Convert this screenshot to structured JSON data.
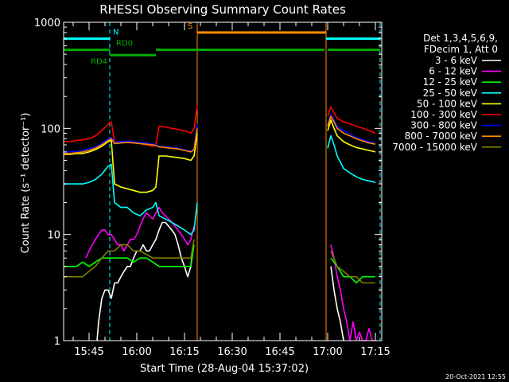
{
  "chart_data": {
    "type": "line",
    "title": "RHESSI Observing Summary Count Rates",
    "xlabel": "Start Time (28-Aug-04 15:37:02)",
    "ylabel": "Count Rate (s⁻¹ detector⁻¹)",
    "x_unit": "minutes after 15:37:02",
    "xlim": [
      0,
      100
    ],
    "ylim": [
      1,
      1000
    ],
    "yscale": "log",
    "x_ticks": [
      {
        "x": 8,
        "label": "15:45"
      },
      {
        "x": 23,
        "label": "16:00"
      },
      {
        "x": 38,
        "label": "16:15"
      },
      {
        "x": 53,
        "label": "16:30"
      },
      {
        "x": 68,
        "label": "16:45"
      },
      {
        "x": 83,
        "label": "17:00"
      },
      {
        "x": 98,
        "label": "17:15"
      }
    ],
    "y_ticks": [
      {
        "y": 1,
        "label": "1"
      },
      {
        "y": 10,
        "label": "10"
      },
      {
        "y": 100,
        "label": "100"
      },
      {
        "y": 1000,
        "label": "1000"
      }
    ],
    "legend_header": [
      "Det 1,3,4,5,6,9,",
      "FDecim 1, Att 0"
    ],
    "legend_position": "right",
    "timestamp": "20-Oct-2021 12:55",
    "flags": [
      {
        "label": "N",
        "color": "#00ffff",
        "level": 700,
        "segments": [
          [
            0,
            14.5
          ],
          [
            82.5,
            99.5
          ]
        ]
      },
      {
        "label": "S",
        "color": "#ff8c00",
        "level": 800,
        "segments": [
          [
            42,
            82.5
          ]
        ]
      },
      {
        "label": "RD0",
        "color": "#00aa00",
        "level": 550,
        "segments": [
          [
            0,
            14.5
          ],
          [
            29,
            82
          ],
          [
            83,
            84
          ],
          [
            84,
            99.5
          ]
        ]
      },
      {
        "label": "RD4",
        "color": "#00aa00",
        "level": 490,
        "segments": [
          [
            14.5,
            29
          ]
        ]
      }
    ],
    "vlines": [
      {
        "x": 0,
        "color": "#00ffff",
        "dash": true
      },
      {
        "x": 14.5,
        "color": "#00ffff",
        "dash": true
      },
      {
        "x": 82.5,
        "color": "#00ffff",
        "dash": true
      },
      {
        "x": 99.5,
        "color": "#00ffff",
        "dash": true
      },
      {
        "x": 42,
        "color": "#ff8c00",
        "dash": false
      },
      {
        "x": 82.5,
        "color": "#ff8c00",
        "dash": false
      }
    ],
    "series": [
      {
        "name": "3 - 6 keV",
        "color": "#ffffff",
        "x": [
          10.5,
          11,
          12,
          13,
          14,
          15,
          16,
          17,
          18,
          19,
          20,
          21,
          22,
          23,
          24,
          25,
          26,
          27,
          28,
          29,
          30,
          31,
          32,
          33,
          34,
          35,
          36,
          37,
          38,
          39,
          40,
          40.5,
          null,
          84,
          85,
          86,
          87,
          88
        ],
        "y": [
          1,
          1.5,
          2.5,
          3,
          3,
          2.5,
          3.5,
          3.5,
          4,
          4.5,
          5,
          5,
          6,
          7,
          7,
          8,
          7,
          7,
          8,
          9,
          11,
          13,
          13,
          12,
          11,
          10,
          8,
          6,
          5,
          4,
          5,
          7,
          null,
          5,
          3,
          2,
          1.5,
          1
        ]
      },
      {
        "name": "6 - 12 keV",
        "color": "#ff00ff",
        "x": [
          7,
          8,
          9,
          10,
          11,
          12,
          13,
          14,
          15,
          16,
          17,
          18,
          19,
          20,
          21,
          22,
          23,
          24,
          25,
          26,
          27,
          28,
          29,
          30,
          31,
          32,
          33,
          34,
          35,
          36,
          37,
          38,
          39,
          40,
          41,
          null,
          84,
          85,
          86,
          87,
          88,
          89,
          90,
          91,
          92,
          93,
          94,
          95,
          96,
          97,
          98
        ],
        "y": [
          6,
          7,
          8,
          9,
          10,
          11,
          11,
          10,
          10,
          9,
          8,
          8,
          7,
          8,
          9,
          9,
          10,
          12,
          14,
          16,
          15,
          14,
          16,
          18,
          16,
          15,
          14,
          13,
          12,
          11,
          10,
          9,
          8,
          9,
          12,
          null,
          8,
          6,
          4,
          3,
          2,
          1.5,
          1,
          1.5,
          1,
          1.2,
          1,
          1,
          1.3,
          1,
          1
        ]
      },
      {
        "name": "12 - 25 keV",
        "color": "#00ff00",
        "x": [
          0,
          2,
          4,
          6,
          8,
          10,
          12,
          14,
          16,
          18,
          20,
          22,
          24,
          26,
          28,
          30,
          32,
          34,
          36,
          38,
          40,
          41,
          null,
          84,
          86,
          88,
          90,
          92,
          94,
          96,
          98
        ],
        "y": [
          5,
          5,
          5,
          5.5,
          5,
          5.5,
          6,
          6,
          6,
          6,
          6,
          5.5,
          6,
          6,
          5.5,
          5,
          5,
          5,
          5,
          5,
          5,
          8,
          null,
          6,
          5,
          4,
          4,
          3.5,
          4,
          4,
          4
        ]
      },
      {
        "name": "25 - 50 keV",
        "color": "#00ffff",
        "x": [
          0,
          2,
          4,
          6,
          8,
          10,
          12,
          14,
          15,
          16,
          18,
          20,
          22,
          24,
          26,
          28,
          29,
          30,
          32,
          34,
          36,
          38,
          40,
          41,
          42,
          null,
          83,
          84,
          85,
          86,
          88,
          90,
          92,
          94,
          96,
          98
        ],
        "y": [
          30,
          30,
          30,
          30,
          31,
          33,
          37,
          44,
          46,
          20,
          18,
          18,
          16,
          15,
          17,
          18,
          20,
          15,
          14,
          13,
          12,
          11,
          10,
          11,
          20,
          null,
          65,
          85,
          70,
          55,
          42,
          38,
          35,
          33,
          32,
          31
        ]
      },
      {
        "name": "50 - 100 keV",
        "color": "#ffff00",
        "x": [
          0,
          2,
          4,
          6,
          8,
          10,
          12,
          14,
          15,
          16,
          18,
          20,
          22,
          24,
          26,
          28,
          29,
          30,
          32,
          34,
          36,
          38,
          40,
          41,
          42,
          null,
          83,
          84,
          85,
          86,
          88,
          90,
          92,
          94,
          96,
          98
        ],
        "y": [
          57,
          57,
          58,
          58,
          60,
          63,
          68,
          75,
          77,
          30,
          28,
          27,
          26,
          25,
          25,
          26,
          28,
          55,
          55,
          54,
          53,
          52,
          50,
          55,
          90,
          null,
          95,
          120,
          100,
          85,
          75,
          70,
          66,
          64,
          62,
          60
        ]
      },
      {
        "name": "100 - 300 keV",
        "color": "#ff0000",
        "x": [
          0,
          2,
          4,
          6,
          8,
          10,
          12,
          14,
          15,
          16,
          18,
          20,
          22,
          24,
          26,
          28,
          29,
          30,
          32,
          34,
          36,
          38,
          40,
          41,
          42,
          null,
          83,
          84,
          85,
          86,
          88,
          90,
          92,
          94,
          96,
          98
        ],
        "y": [
          75,
          75,
          77,
          78,
          80,
          85,
          95,
          110,
          115,
          75,
          75,
          74,
          73,
          72,
          70,
          68,
          70,
          105,
          103,
          100,
          98,
          95,
          90,
          100,
          165,
          null,
          130,
          160,
          140,
          125,
          115,
          110,
          105,
          100,
          95,
          90
        ]
      },
      {
        "name": "300 - 800 keV",
        "color": "#0000ff",
        "x": [
          0,
          2,
          4,
          6,
          8,
          10,
          12,
          14,
          15,
          16,
          18,
          20,
          22,
          24,
          26,
          28,
          29,
          30,
          32,
          34,
          36,
          38,
          40,
          41,
          42,
          null,
          83,
          84,
          85,
          86,
          88,
          90,
          92,
          94,
          96,
          98
        ],
        "y": [
          60,
          60,
          61,
          62,
          64,
          67,
          72,
          80,
          82,
          74,
          75,
          76,
          75,
          74,
          73,
          71,
          70,
          68,
          67,
          66,
          65,
          63,
          61,
          65,
          110,
          null,
          110,
          135,
          120,
          105,
          95,
          88,
          82,
          78,
          75,
          73
        ]
      },
      {
        "name": "800 - 7000 keV",
        "color": "#ff8c00",
        "x": [
          0,
          2,
          4,
          6,
          8,
          10,
          12,
          14,
          15,
          16,
          18,
          20,
          22,
          24,
          26,
          28,
          29,
          30,
          32,
          34,
          36,
          38,
          40,
          41,
          42,
          null,
          83,
          84,
          85,
          86,
          88,
          90,
          92,
          94,
          96,
          98
        ],
        "y": [
          58,
          58,
          59,
          60,
          62,
          65,
          70,
          77,
          80,
          72,
          73,
          74,
          73,
          72,
          71,
          70,
          69,
          67,
          66,
          65,
          64,
          62,
          60,
          63,
          100,
          null,
          105,
          130,
          115,
          100,
          90,
          85,
          80,
          76,
          73,
          71
        ]
      },
      {
        "name": "7000 - 15000 keV",
        "color": "#808000",
        "x": [
          0,
          2,
          4,
          6,
          8,
          10,
          12,
          14,
          16,
          18,
          20,
          22,
          24,
          26,
          28,
          30,
          32,
          34,
          36,
          38,
          40,
          41,
          null,
          84,
          86,
          88,
          90,
          92,
          94,
          96,
          98
        ],
        "y": [
          4,
          4,
          4,
          4,
          4.5,
          5,
          6,
          7,
          7,
          8,
          8,
          7,
          7,
          6.5,
          6,
          6,
          6,
          6,
          6,
          6,
          6,
          9,
          null,
          7,
          5,
          4.5,
          4,
          4,
          3.5,
          3.5,
          3.5
        ]
      }
    ]
  }
}
